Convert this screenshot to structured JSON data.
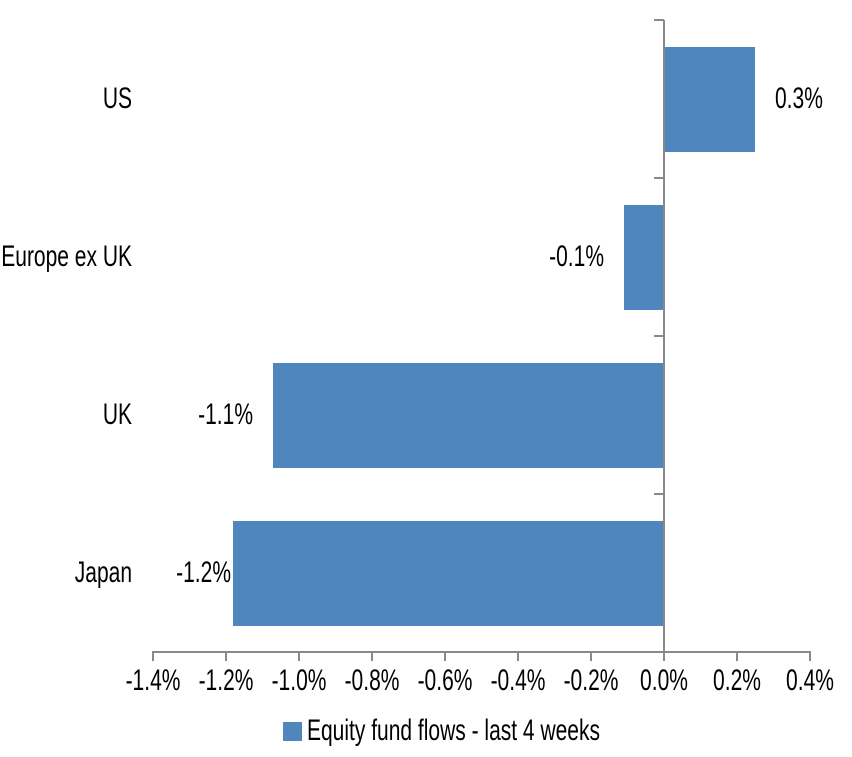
{
  "chart_data": {
    "type": "bar",
    "orientation": "horizontal",
    "title": "",
    "categories": [
      "US",
      "Europe ex UK",
      "UK",
      "Japan"
    ],
    "series": [
      {
        "name": "Equity fund flows - last 4 weeks",
        "values_pct": [
          0.25,
          -0.11,
          -1.07,
          -1.18
        ],
        "data_labels": [
          "0.3%",
          "-0.1%",
          "-1.1%",
          "-1.2%"
        ]
      }
    ],
    "x_axis": {
      "min": -1.4,
      "max": 0.4,
      "tick_values": [
        -1.4,
        -1.2,
        -1.0,
        -0.8,
        -0.6,
        -0.4,
        -0.2,
        0.0,
        0.2,
        0.4
      ],
      "tick_labels": [
        "-1.4%",
        "-1.2%",
        "-1.0%",
        "-0.8%",
        "-0.6%",
        "-0.4%",
        "-0.2%",
        "0.0%",
        "0.2%",
        "0.4%"
      ]
    },
    "legend": {
      "position": "bottom",
      "entries": [
        "Equity fund flows - last 4 weeks"
      ]
    },
    "grid": false,
    "colors": {
      "bar": "#4E86BD",
      "axis": "#898989",
      "text": "#000000",
      "background": "#FFFFFF"
    }
  }
}
